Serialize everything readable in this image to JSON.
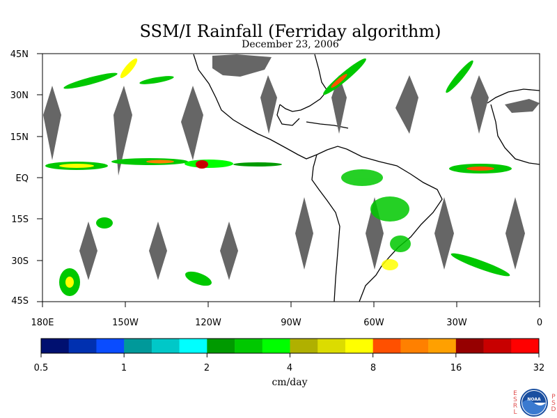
{
  "title": "SSM/I Rainfall (Ferriday algorithm)",
  "subtitle": "December 23, 2006",
  "map": {
    "lon_labels": [
      "180E",
      "150W",
      "120W",
      "90W",
      "60W",
      "30W",
      "0"
    ],
    "lat_labels": [
      "45N",
      "30N",
      "15N",
      "EQ",
      "15S",
      "30S",
      "45S"
    ]
  },
  "colorbar": {
    "colors": [
      "#001070",
      "#0030b0",
      "#0a4cff",
      "#00999a",
      "#00c8c8",
      "#00ffff",
      "#009a00",
      "#00c800",
      "#00ff00",
      "#b0b000",
      "#dcdc00",
      "#ffff00",
      "#ff5000",
      "#ff8000",
      "#ffa000",
      "#960000",
      "#c80000",
      "#ff0000"
    ],
    "tick_labels": [
      "0.5",
      "1",
      "2",
      "4",
      "8",
      "16",
      "32"
    ],
    "unit": "cm/day"
  },
  "logo": {
    "left_letters": [
      "E",
      "S",
      "R",
      "L"
    ],
    "right_letters": [
      "P",
      "S",
      "D"
    ],
    "emblem_text": "NOAA"
  },
  "icons": {
    "logo": "noaa-emblem-icon"
  }
}
